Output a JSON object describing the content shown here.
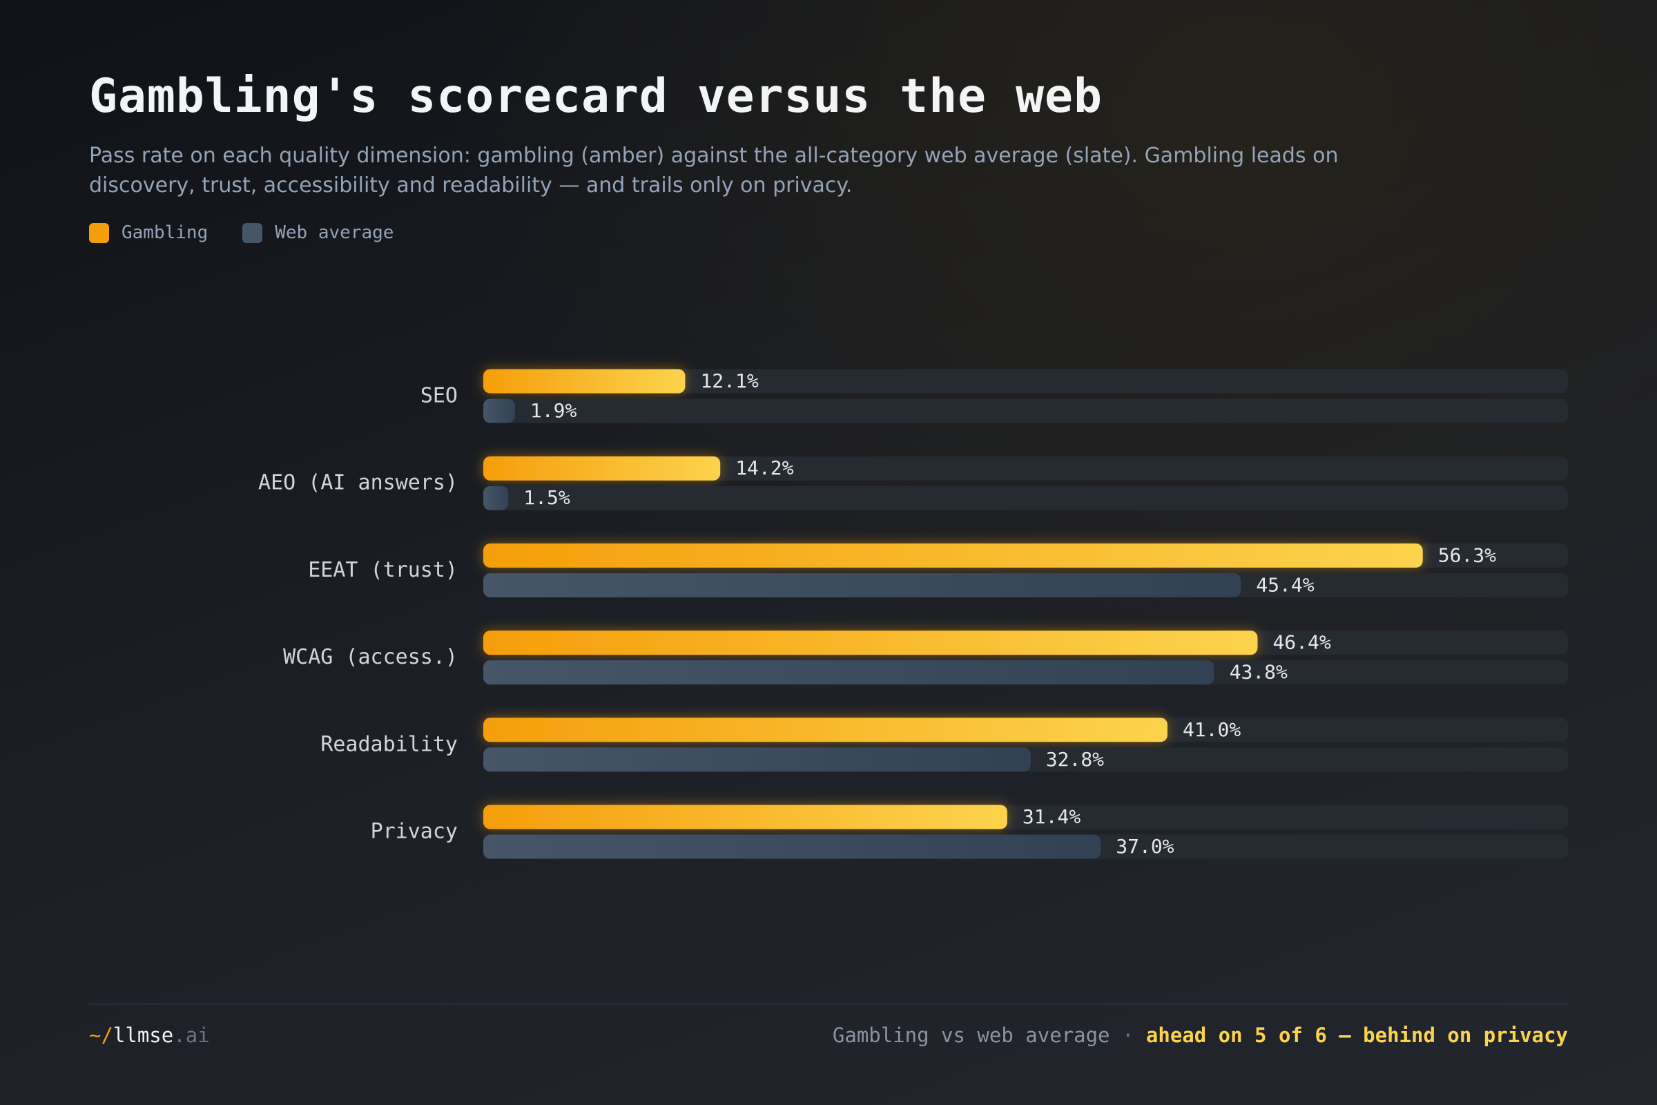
{
  "chart_data": {
    "type": "bar",
    "orientation": "horizontal",
    "title": "Gambling's scorecard versus the web",
    "subtitle": "Pass rate on each quality dimension: gambling (amber) against the all-category web average (slate). Gambling leads on discovery, trust, accessibility and readability — and trails only on privacy.",
    "categories": [
      "SEO",
      "AEO (AI answers)",
      "EEAT (trust)",
      "WCAG (access.)",
      "Readability",
      "Privacy"
    ],
    "series": [
      {
        "name": "Gambling",
        "color": "#f59e0b",
        "values": [
          12.1,
          14.2,
          56.3,
          46.4,
          41.0,
          31.4
        ],
        "value_labels": [
          "12.1%",
          "14.2%",
          "56.3%",
          "46.4%",
          "41.0%",
          "31.4%"
        ]
      },
      {
        "name": "Web average",
        "color": "#475569",
        "values": [
          1.9,
          1.5,
          45.4,
          43.8,
          32.8,
          37.0
        ],
        "value_labels": [
          "1.9%",
          "1.5%",
          "45.4%",
          "43.8%",
          "32.8%",
          "37.0%"
        ]
      }
    ],
    "xlim": [
      0,
      65
    ]
  },
  "footer": {
    "brand_prefix": "~/",
    "brand_name": "llmse",
    "brand_suffix": ".ai",
    "summary": "Gambling vs web average",
    "separator": "·",
    "highlight": "ahead on 5 of 6 — behind on privacy"
  }
}
